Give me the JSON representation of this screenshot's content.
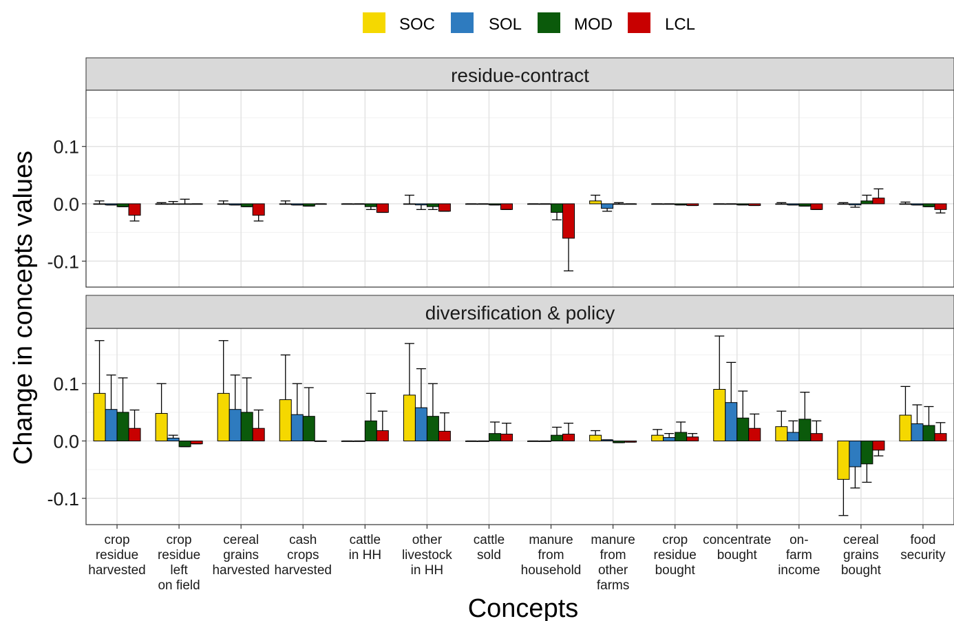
{
  "chart_data": {
    "type": "bar",
    "xlabel": "Concepts",
    "ylabel": "Change in concepts values",
    "ylim": [
      -0.15,
      0.2
    ],
    "yticks": [
      -0.1,
      0.0,
      0.1
    ],
    "ytick_labels": [
      "-0.1",
      "0.0",
      "0.1"
    ],
    "grid": true,
    "legend_position": "top",
    "error_bars": true,
    "categories": [
      "crop\nresidue\nharvested",
      "crop\nresidue\nleft\non field",
      "cereal\ngrains\nharvested",
      "cash\ncrops\nharvested",
      "cattle\nin HH",
      "other\nlivestock\nin HH",
      "cattle\nsold",
      "manure\nfrom\nhousehold",
      "manure\nfrom\nother\nfarms",
      "crop\nresidue\nbought",
      "concentrate\nbought",
      "on-\nfarm\nincome",
      "cereal\ngrains\nbought",
      "food\nsecurity"
    ],
    "series": [
      {
        "name": "SOC",
        "color": "#F5D800"
      },
      {
        "name": "SOL",
        "color": "#2E7BBF"
      },
      {
        "name": "MOD",
        "color": "#0B5A0B"
      },
      {
        "name": "LCL",
        "color": "#C80000"
      }
    ],
    "panels": [
      {
        "title": "residue-contract",
        "values": {
          "SOC": [
            0.0,
            0.0,
            0.0,
            0.0,
            0.0,
            0.0,
            0.0,
            0.0,
            0.005,
            0.0,
            0.0,
            0.0,
            0.0,
            0.0
          ],
          "SOL": [
            -0.002,
            0.0,
            -0.002,
            -0.002,
            0.0,
            -0.002,
            0.0,
            0.0,
            -0.008,
            0.0,
            0.0,
            -0.002,
            -0.002,
            -0.002
          ],
          "MOD": [
            -0.005,
            0.0,
            -0.005,
            -0.004,
            -0.005,
            -0.005,
            -0.002,
            -0.015,
            0.0,
            -0.002,
            -0.002,
            -0.004,
            0.005,
            -0.005
          ],
          "LCL": [
            -0.02,
            0.0,
            -0.02,
            0.0,
            -0.015,
            -0.013,
            -0.01,
            -0.06,
            0.0,
            -0.003,
            -0.003,
            -0.01,
            0.01,
            -0.01
          ]
        },
        "errors": {
          "SOC": [
            0.005,
            0.002,
            0.005,
            0.005,
            0.0,
            0.015,
            0.0,
            0.0,
            0.01,
            0.0,
            0.0,
            0.002,
            0.002,
            0.003
          ],
          "SOL": [
            0.0,
            0.004,
            0.0,
            0.0,
            0.0,
            0.008,
            0.0,
            0.0,
            0.005,
            0.0,
            0.0,
            0.0,
            0.004,
            0.0
          ],
          "MOD": [
            0.0,
            0.008,
            0.0,
            0.0,
            0.005,
            0.005,
            0.0,
            0.013,
            0.002,
            0.0,
            0.0,
            0.0,
            0.01,
            0.0
          ],
          "LCL": [
            0.01,
            0.0,
            0.01,
            0.0,
            0.0,
            0.0,
            0.0,
            0.057,
            0.0,
            0.0,
            0.0,
            0.0,
            0.016,
            0.006
          ]
        }
      },
      {
        "title": "diversification & policy",
        "values": {
          "SOC": [
            0.083,
            0.048,
            0.083,
            0.072,
            0.0,
            0.08,
            0.0,
            0.0,
            0.01,
            0.01,
            0.09,
            0.025,
            -0.067,
            0.045
          ],
          "SOL": [
            0.055,
            0.005,
            0.055,
            0.046,
            0.0,
            0.058,
            0.0,
            0.0,
            0.002,
            0.006,
            0.067,
            0.015,
            -0.045,
            0.03
          ],
          "MOD": [
            0.05,
            -0.01,
            0.05,
            0.043,
            0.035,
            0.043,
            0.013,
            0.01,
            -0.003,
            0.015,
            0.04,
            0.038,
            -0.04,
            0.027
          ],
          "LCL": [
            0.022,
            -0.005,
            0.022,
            0.0,
            0.018,
            0.017,
            0.012,
            0.012,
            -0.002,
            0.007,
            0.022,
            0.013,
            -0.016,
            0.013
          ]
        },
        "errors": {
          "SOC": [
            0.092,
            0.052,
            0.092,
            0.078,
            0.0,
            0.09,
            0.0,
            0.0,
            0.008,
            0.01,
            0.093,
            0.027,
            0.063,
            0.05
          ],
          "SOL": [
            0.06,
            0.005,
            0.06,
            0.054,
            0.0,
            0.068,
            0.0,
            0.0,
            0.0,
            0.007,
            0.07,
            0.02,
            0.037,
            0.033
          ],
          "MOD": [
            0.06,
            0.0,
            0.06,
            0.05,
            0.048,
            0.057,
            0.02,
            0.014,
            0.0,
            0.018,
            0.047,
            0.047,
            0.032,
            0.033
          ],
          "LCL": [
            0.032,
            0.0,
            0.032,
            0.0,
            0.034,
            0.032,
            0.019,
            0.019,
            0.0,
            0.006,
            0.025,
            0.022,
            0.01,
            0.019
          ]
        }
      }
    ]
  }
}
